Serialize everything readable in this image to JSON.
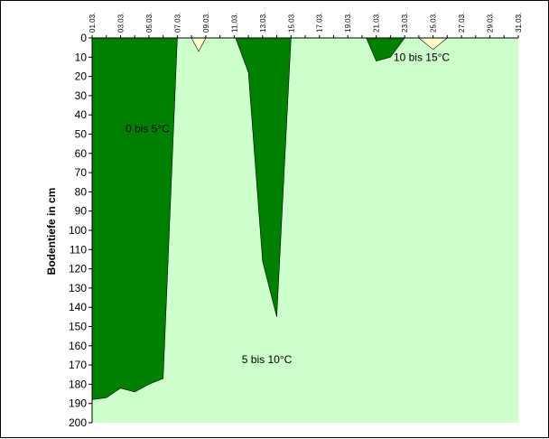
{
  "chart_data": {
    "type": "area",
    "title": "",
    "xlabel": "",
    "ylabel": "Bodentiefe in cm",
    "x_categories": [
      "01.03.",
      "02.03.",
      "03.03.",
      "04.03.",
      "05.03.",
      "06.03.",
      "07.03.",
      "08.03.",
      "09.03.",
      "10.03.",
      "11.03.",
      "12.03.",
      "13.03.",
      "14.03.",
      "15.03.",
      "16.03.",
      "17.03.",
      "18.03.",
      "19.03.",
      "20.03.",
      "21.03.",
      "22.03.",
      "23.03.",
      "24.03.",
      "25.03.",
      "26.03.",
      "27.03.",
      "28.03.",
      "29.03.",
      "30.03.",
      "31.03."
    ],
    "x_tick_labels": [
      "01.03.",
      "03.03.",
      "05.03.",
      "07.03.",
      "09.03.",
      "11.03.",
      "13.03.",
      "15.03.",
      "17.03.",
      "19.03.",
      "21.03.",
      "23.03.",
      "25.03.",
      "27.03.",
      "29.03.",
      "31.03."
    ],
    "ylim": [
      0,
      200
    ],
    "y_inverted": true,
    "y_ticks": [
      0,
      10,
      20,
      30,
      40,
      50,
      60,
      70,
      80,
      90,
      100,
      110,
      120,
      130,
      140,
      150,
      160,
      170,
      180,
      190,
      200
    ],
    "grid": false,
    "background_color": "#ccffcc",
    "series": [
      {
        "name": "0 bis 5°C",
        "color": "#008000",
        "regions": [
          {
            "x": [
              1,
              2,
              3,
              4,
              5,
              6,
              7,
              7.1
            ],
            "y": [
              188,
              187,
              182,
              184,
              180,
              177,
              0,
              0
            ]
          },
          {
            "x": [
              11.1,
              12,
              13,
              14,
              15
            ],
            "y": [
              0,
              18,
              116,
              145,
              0
            ]
          }
        ]
      },
      {
        "name": "10 bis 15°C",
        "color": "#ffffcc",
        "regions": [
          {
            "x": [
              8,
              8.5,
              9
            ],
            "y": [
              0,
              7,
              0
            ]
          },
          {
            "x": [
              24,
              25,
              26
            ],
            "y": [
              0,
              6,
              0
            ]
          }
        ]
      },
      {
        "name": "0 bis 5°C",
        "color": "#008000",
        "regions": [
          {
            "x": [
              20.3,
              21,
              22,
              23
            ],
            "y": [
              0,
              12,
              10,
              0
            ]
          }
        ]
      }
    ],
    "annotations": [
      {
        "text": "0 bis 5°C",
        "x": 4.9,
        "y": 49
      },
      {
        "text": "5 bis 10°C",
        "x": 13.3,
        "y": 169
      },
      {
        "text": "10 bis 15°C",
        "x": 24.2,
        "y": 12
      }
    ]
  }
}
